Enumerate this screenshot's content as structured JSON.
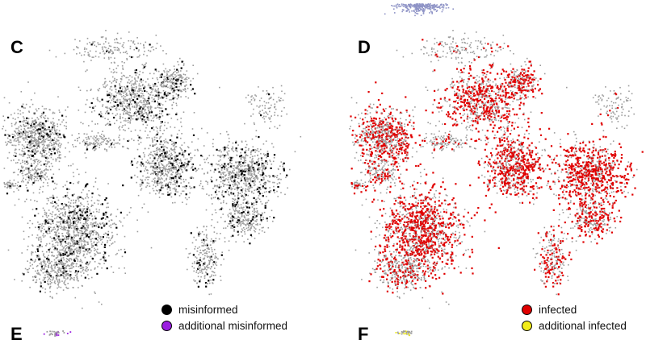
{
  "panels": [
    {
      "label": "C",
      "point_color": "#9c9c9c",
      "highlight_color": "#000000",
      "legend": [
        {
          "label": "misinformed",
          "color": "#000000"
        },
        {
          "label": "additional misinformed",
          "color": "#9b1fe0"
        }
      ]
    },
    {
      "label": "D",
      "point_color": "#9c9c9c",
      "highlight_color": "#e00000",
      "legend": [
        {
          "label": "infected",
          "color": "#e00000"
        },
        {
          "label": "additional infected",
          "color": "#f2ec1a"
        }
      ]
    }
  ],
  "next_panels": [
    {
      "label": "E"
    },
    {
      "label": "F"
    }
  ],
  "top_fragment_color": "#8e93c6"
}
